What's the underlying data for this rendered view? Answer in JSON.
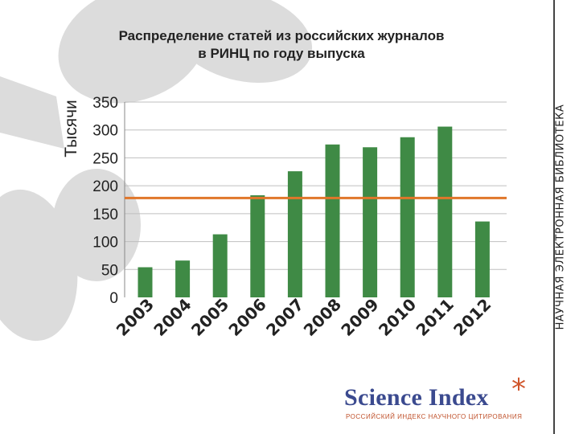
{
  "header": {
    "title_line1": "Распределение статей из российских журналов",
    "title_line2": "в РИНЦ по году выпуска"
  },
  "side_label": "НАУЧНАЯ ЭЛЕКТРОННАЯ БИБЛИОТЕКА",
  "logo": {
    "name": "Science Index",
    "star": "*",
    "subtitle": "РОССИЙСКИЙ ИНДЕКС НАУЧНОГО ЦИТИРОВАНИЯ"
  },
  "colors": {
    "bar": "#3f8a45",
    "reference_line": "#e0762a",
    "grid": "#bfbfbf",
    "background_shape": "#dcdcdc"
  },
  "chart_data": {
    "type": "bar",
    "title": "Распределение статей из российских журналов в РИНЦ по году выпуска",
    "xlabel": "",
    "ylabel": "Тысячи",
    "categories": [
      "2003",
      "2004",
      "2005",
      "2006",
      "2007",
      "2008",
      "2009",
      "2010",
      "2011",
      "2012"
    ],
    "values": [
      54,
      66,
      113,
      183,
      226,
      274,
      269,
      287,
      306,
      136
    ],
    "reference_line": 178,
    "ylim": [
      0,
      350
    ],
    "yticks": [
      "0",
      "50",
      "100",
      "150",
      "200",
      "250",
      "300",
      "350"
    ],
    "grid": true,
    "legend": "none"
  }
}
